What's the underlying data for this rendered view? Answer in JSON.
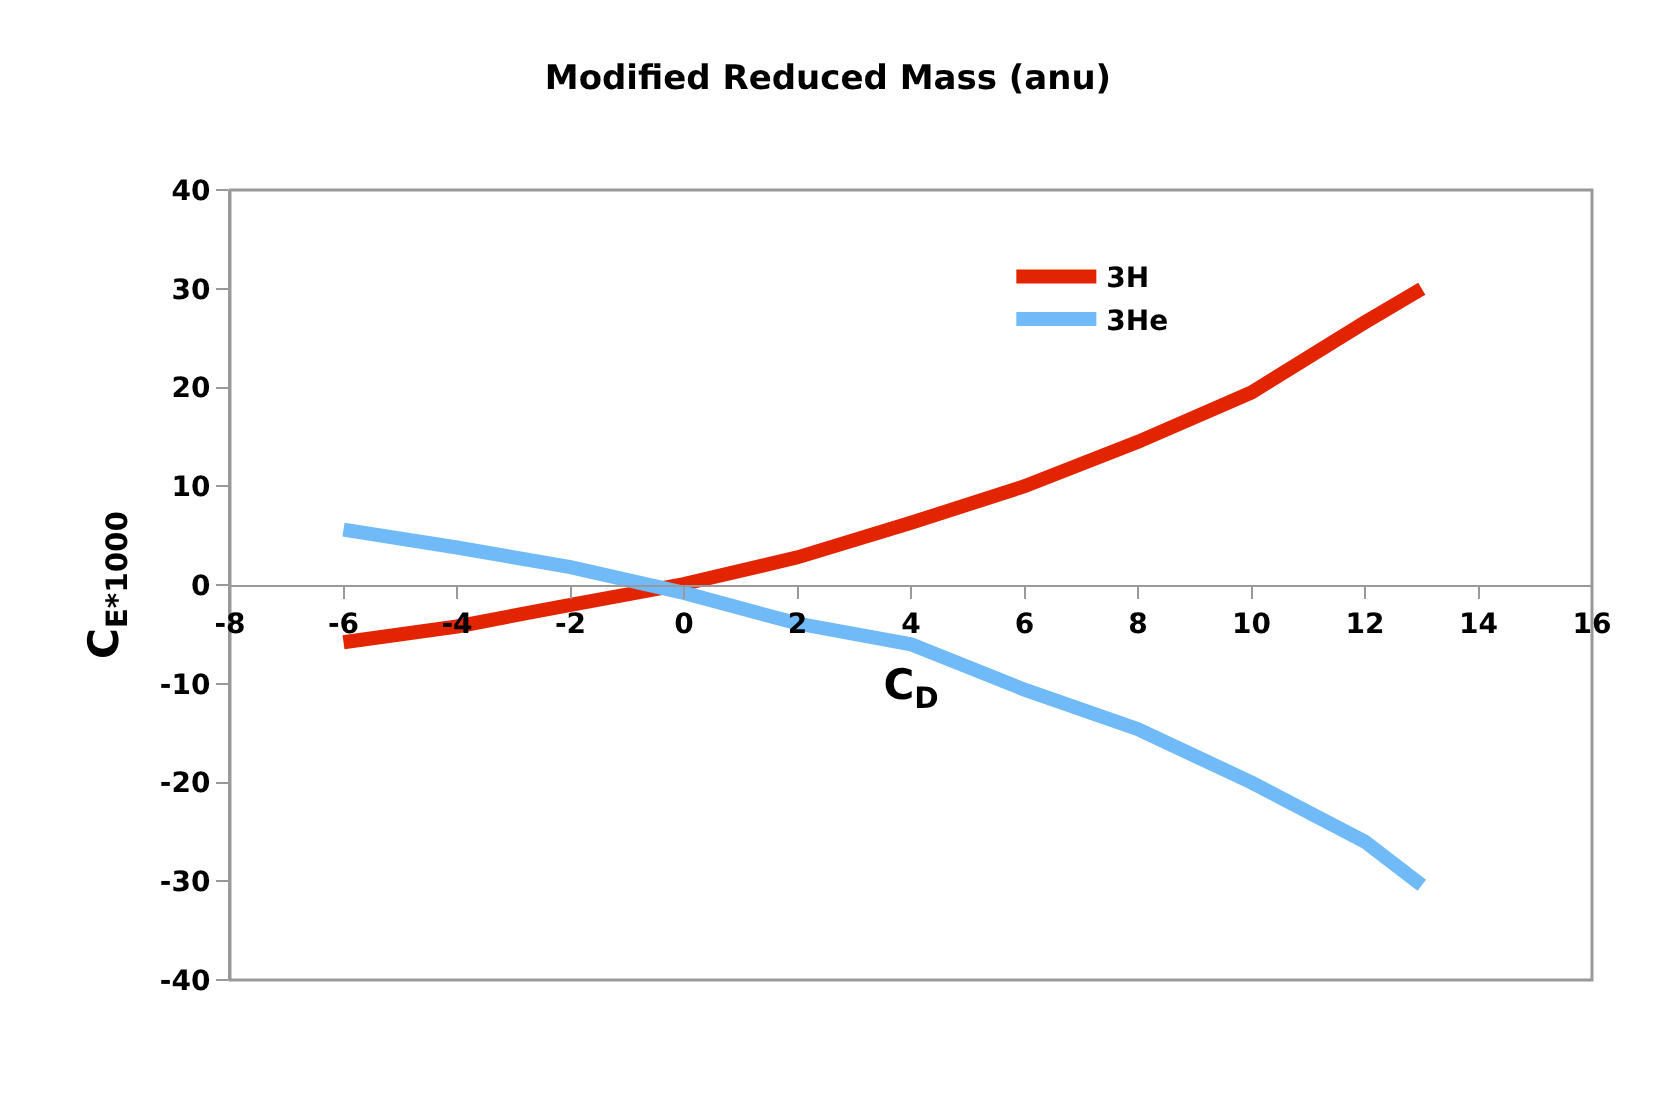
{
  "chart_data": {
    "type": "line",
    "title": "Modified Reduced Mass (anu)",
    "xlabel": "C$_{D}$",
    "ylabel": "C$_{E*1000}$",
    "x": [
      -6,
      -4,
      -2,
      0,
      2,
      4,
      6,
      8,
      10,
      12,
      13
    ],
    "series": [
      {
        "name": "3H",
        "color": "#e32400",
        "values": [
          -5.8,
          -4.2,
          -2.0,
          0.1,
          2.8,
          6.3,
          10.0,
          14.5,
          19.5,
          26.6,
          30.0
        ]
      },
      {
        "name": "3He",
        "color": "#6fbaf7",
        "values": [
          5.6,
          3.8,
          1.8,
          -0.8,
          -3.9,
          -6.0,
          -10.6,
          -14.6,
          -20.0,
          -26.0,
          -30.4
        ]
      }
    ],
    "xlim": [
      -8,
      16
    ],
    "xticks": [
      -8,
      -6,
      -4,
      -2,
      0,
      2,
      4,
      6,
      8,
      10,
      12,
      14,
      16
    ],
    "ylim": [
      -40,
      40
    ],
    "yticks": [
      -40,
      -30,
      -20,
      -10,
      0,
      10,
      20,
      30,
      40
    ],
    "grid": false,
    "legend": "top right",
    "marker": "none",
    "line_style": "solid"
  }
}
